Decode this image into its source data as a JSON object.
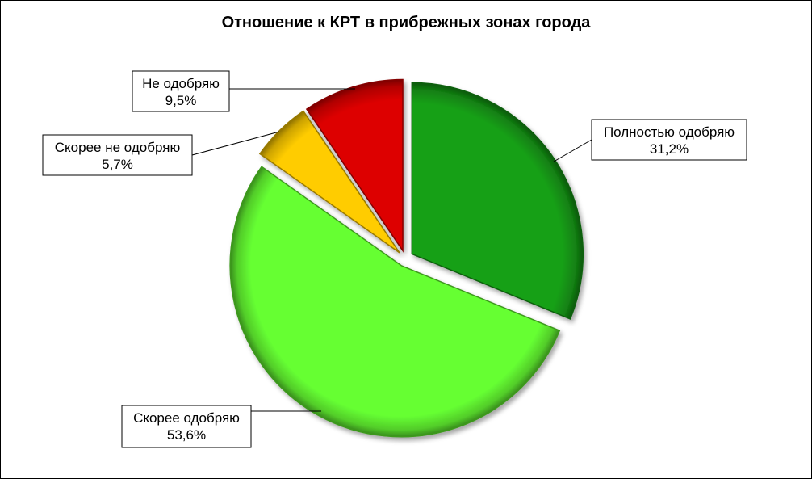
{
  "chart_data": {
    "type": "pie",
    "title": "Отношение к КРТ в прибрежных зонах города",
    "legend": "none",
    "slices": [
      {
        "label": "Полностью одобряю",
        "value": 31.2,
        "value_text": "31,2%",
        "color": "#16a016",
        "exploded": true
      },
      {
        "label": "Скорее одобряю",
        "value": 53.6,
        "value_text": "53,6%",
        "color": "#66ff33",
        "exploded": true
      },
      {
        "label": "Скорее не одобряю",
        "value": 5.7,
        "value_text": "5,7%",
        "color": "#ffcc00",
        "exploded": true
      },
      {
        "label": "Не одобряю",
        "value": 9.5,
        "value_text": "9,5%",
        "color": "#dd0000",
        "exploded": true
      }
    ]
  }
}
